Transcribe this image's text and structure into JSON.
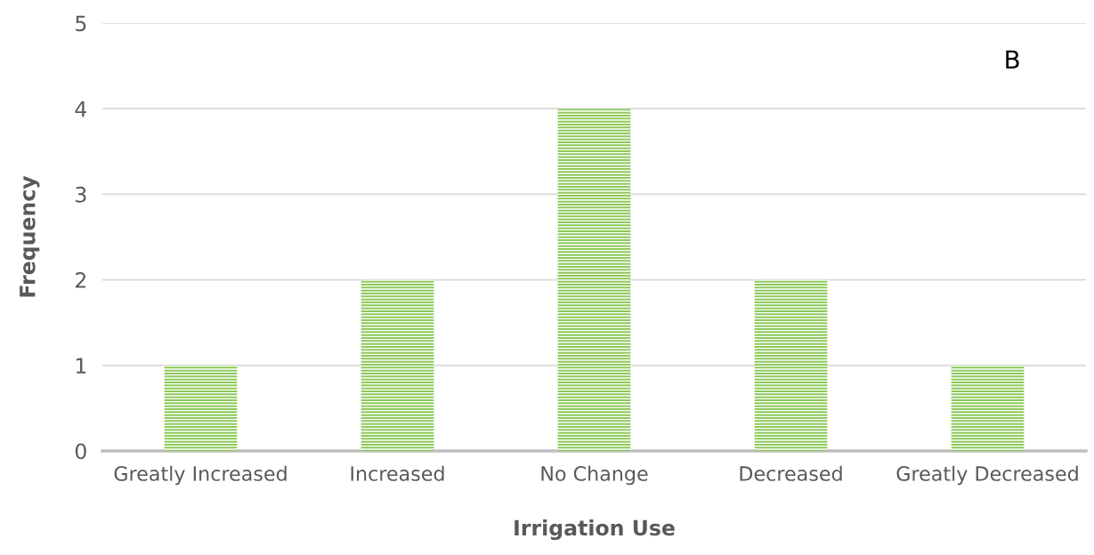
{
  "chart_data": {
    "type": "bar",
    "xlabel": "Irrigation Use",
    "ylabel": "Frequency",
    "categories": [
      "Greatly Increased",
      "Increased",
      "No Change",
      "Decreased",
      "Greatly Decreased"
    ],
    "values": [
      1,
      2,
      4,
      2,
      1
    ],
    "color": "#8dc95a",
    "ylim": [
      0,
      5
    ],
    "yticks": [
      0,
      1,
      2,
      3,
      4,
      5
    ],
    "grid": "y",
    "legend": false,
    "annotations": [
      "B"
    ]
  }
}
